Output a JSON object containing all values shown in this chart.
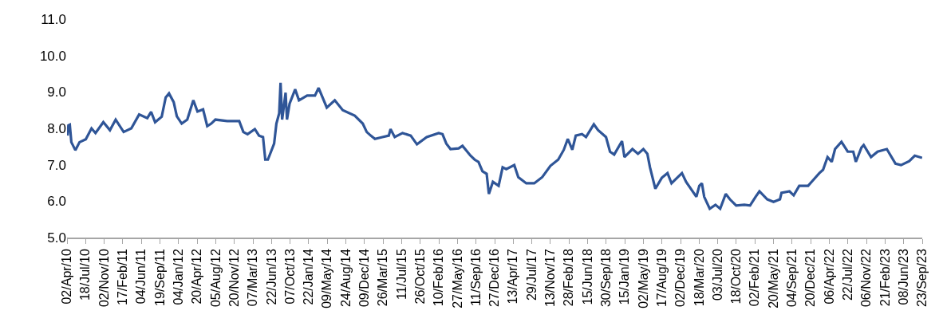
{
  "chart_data": {
    "type": "line",
    "x": [
      "2010-04-05",
      "2010-04-10",
      "2010-04-18",
      "2010-04-27",
      "2010-05-20",
      "2010-06-13",
      "2010-07-19",
      "2010-08-21",
      "2010-09-13",
      "2010-10-28",
      "2010-12-05",
      "2011-01-07",
      "2011-02-22",
      "2011-04-07",
      "2011-05-22",
      "2011-07-08",
      "2011-07-30",
      "2011-08-22",
      "2011-09-29",
      "2011-10-22",
      "2011-11-10",
      "2011-12-07",
      "2011-12-25",
      "2012-01-22",
      "2012-02-23",
      "2012-03-29",
      "2012-04-22",
      "2012-05-24",
      "2012-06-17",
      "2012-07-10",
      "2012-08-03",
      "2012-10-10",
      "2012-12-18",
      "2013-01-11",
      "2013-02-04",
      "2013-03-18",
      "2013-04-11",
      "2013-05-04",
      "2013-05-17",
      "2013-06-01",
      "2013-06-19",
      "2013-07-07",
      "2013-07-20",
      "2013-08-05",
      "2013-08-13",
      "2013-08-22",
      "2013-09-11",
      "2013-09-19",
      "2013-10-04",
      "2013-11-05",
      "2013-11-27",
      "2014-01-13",
      "2014-02-27",
      "2014-03-20",
      "2014-05-06",
      "2014-06-21",
      "2014-08-06",
      "2014-10-14",
      "2014-11-29",
      "2014-12-22",
      "2015-01-14",
      "2015-02-07",
      "2015-03-22",
      "2015-04-28",
      "2015-05-08",
      "2015-06-01",
      "2015-07-16",
      "2015-09-01",
      "2015-10-07",
      "2015-12-02",
      "2016-02-09",
      "2016-03-02",
      "2016-03-24",
      "2016-04-17",
      "2016-06-03",
      "2016-06-25",
      "2016-08-10",
      "2016-09-03",
      "2016-09-25",
      "2016-10-18",
      "2016-11-11",
      "2016-11-24",
      "2016-12-17",
      "2017-01-19",
      "2017-02-11",
      "2017-03-04",
      "2017-04-19",
      "2017-05-12",
      "2017-06-27",
      "2017-08-12",
      "2017-09-27",
      "2017-11-13",
      "2017-12-28",
      "2018-01-29",
      "2018-02-21",
      "2018-03-19",
      "2018-04-08",
      "2018-05-14",
      "2018-06-06",
      "2018-07-21",
      "2018-08-14",
      "2018-09-29",
      "2018-10-22",
      "2018-11-15",
      "2018-12-30",
      "2019-01-13",
      "2019-02-28",
      "2019-04-01",
      "2019-05-02",
      "2019-05-25",
      "2019-06-09",
      "2019-07-10",
      "2019-08-16",
      "2019-09-18",
      "2019-10-11",
      "2019-12-10",
      "2020-01-03",
      "2020-03-02",
      "2020-03-19",
      "2020-04-03",
      "2020-04-16",
      "2020-05-18",
      "2020-06-20",
      "2020-07-17",
      "2020-08-18",
      "2020-09-11",
      "2020-10-17",
      "2020-12-03",
      "2021-01-05",
      "2021-02-06",
      "2021-02-28",
      "2021-04-14",
      "2021-05-20",
      "2021-06-26",
      "2021-07-05",
      "2021-08-20",
      "2021-09-13",
      "2021-10-15",
      "2021-12-05",
      "2022-01-07",
      "2022-02-08",
      "2022-03-01",
      "2022-03-27",
      "2022-04-20",
      "2022-05-09",
      "2022-06-15",
      "2022-07-21",
      "2022-08-22",
      "2022-09-06",
      "2022-10-08",
      "2022-10-21",
      "2022-12-02",
      "2023-01-09",
      "2023-03-03",
      "2023-04-22",
      "2023-05-24",
      "2023-07-10",
      "2023-08-11",
      "2023-09-22"
    ],
    "series": [
      {
        "color": "#2f5597",
        "values": [
          7.8,
          8.08,
          8.1,
          7.62,
          7.4,
          7.62,
          7.7,
          8.0,
          7.87,
          8.17,
          7.95,
          8.24,
          7.9,
          8.0,
          8.38,
          8.28,
          8.45,
          8.17,
          8.32,
          8.85,
          8.96,
          8.72,
          8.33,
          8.13,
          8.24,
          8.77,
          8.46,
          8.52,
          8.06,
          8.13,
          8.24,
          8.2,
          8.2,
          7.9,
          7.84,
          7.98,
          7.8,
          7.76,
          7.14,
          7.14,
          7.36,
          7.58,
          8.13,
          8.41,
          9.25,
          8.24,
          8.98,
          8.24,
          8.68,
          9.07,
          8.77,
          8.9,
          8.9,
          9.11,
          8.57,
          8.77,
          8.5,
          8.35,
          8.13,
          7.9,
          7.8,
          7.71,
          7.76,
          7.8,
          7.98,
          7.76,
          7.87,
          7.8,
          7.56,
          7.76,
          7.87,
          7.84,
          7.58,
          7.43,
          7.45,
          7.52,
          7.25,
          7.14,
          7.08,
          6.82,
          6.75,
          6.2,
          6.53,
          6.42,
          6.93,
          6.88,
          6.99,
          6.66,
          6.49,
          6.49,
          6.66,
          6.97,
          7.14,
          7.41,
          7.71,
          7.41,
          7.8,
          7.84,
          7.76,
          8.11,
          7.95,
          7.76,
          7.36,
          7.28,
          7.65,
          7.21,
          7.43,
          7.3,
          7.43,
          7.3,
          6.93,
          6.34,
          6.64,
          6.77,
          6.49,
          6.77,
          6.53,
          6.12,
          6.42,
          6.49,
          6.12,
          5.79,
          5.9,
          5.79,
          6.2,
          6.05,
          5.88,
          5.9,
          5.88,
          6.12,
          6.27,
          6.05,
          5.98,
          6.05,
          6.23,
          6.27,
          6.16,
          6.42,
          6.42,
          6.6,
          6.77,
          6.86,
          7.21,
          7.08,
          7.43,
          7.63,
          7.36,
          7.36,
          7.08,
          7.47,
          7.54,
          7.21,
          7.36,
          7.43,
          7.03,
          6.99,
          7.1,
          7.25,
          7.19
        ]
      }
    ],
    "xlim": [
      "2010-04-02",
      "2023-09-23"
    ],
    "xticks": [
      {
        "value": "2010-04-02",
        "label": "02/Apr/10"
      },
      {
        "value": "2010-07-18",
        "label": "18/Jul/10"
      },
      {
        "value": "2010-11-02",
        "label": "02/Nov/10"
      },
      {
        "value": "2011-02-17",
        "label": "17/Feb/11"
      },
      {
        "value": "2011-06-04",
        "label": "04/Jun/11"
      },
      {
        "value": "2011-09-19",
        "label": "19/Sep/11"
      },
      {
        "value": "2012-01-04",
        "label": "04/Jan/12"
      },
      {
        "value": "2012-04-20",
        "label": "20/Apr/12"
      },
      {
        "value": "2012-08-05",
        "label": "05/Aug/12"
      },
      {
        "value": "2012-11-20",
        "label": "20/Nov/12"
      },
      {
        "value": "2013-03-07",
        "label": "07/Mar/13"
      },
      {
        "value": "2013-06-22",
        "label": "22/Jun/13"
      },
      {
        "value": "2013-10-07",
        "label": "07/Oct/13"
      },
      {
        "value": "2014-01-22",
        "label": "22/Jan/14"
      },
      {
        "value": "2014-05-09",
        "label": "09/May/14"
      },
      {
        "value": "2014-08-24",
        "label": "24/Aug/14"
      },
      {
        "value": "2014-12-09",
        "label": "09/Dec/14"
      },
      {
        "value": "2015-03-26",
        "label": "26/Mar/15"
      },
      {
        "value": "2015-07-11",
        "label": "11/Jul/15"
      },
      {
        "value": "2015-10-26",
        "label": "26/Oct/15"
      },
      {
        "value": "2016-02-10",
        "label": "10/Feb/16"
      },
      {
        "value": "2016-05-27",
        "label": "27/May/16"
      },
      {
        "value": "2016-09-11",
        "label": "11/Sep/16"
      },
      {
        "value": "2016-12-27",
        "label": "27/Dec/16"
      },
      {
        "value": "2017-04-13",
        "label": "13/Apr/17"
      },
      {
        "value": "2017-07-29",
        "label": "29/Jul/17"
      },
      {
        "value": "2017-11-13",
        "label": "13/Nov/17"
      },
      {
        "value": "2018-02-28",
        "label": "28/Feb/18"
      },
      {
        "value": "2018-06-15",
        "label": "15/Jun/18"
      },
      {
        "value": "2018-09-30",
        "label": "30/Sep/18"
      },
      {
        "value": "2019-01-15",
        "label": "15/Jan/19"
      },
      {
        "value": "2019-05-02",
        "label": "02/May/19"
      },
      {
        "value": "2019-08-17",
        "label": "17/Aug/19"
      },
      {
        "value": "2019-12-02",
        "label": "02/Dec/19"
      },
      {
        "value": "2020-03-18",
        "label": "18/Mar/20"
      },
      {
        "value": "2020-07-03",
        "label": "03/Jul/20"
      },
      {
        "value": "2020-10-18",
        "label": "18/Oct/20"
      },
      {
        "value": "2021-02-02",
        "label": "02/Feb/21"
      },
      {
        "value": "2021-05-20",
        "label": "20/May/21"
      },
      {
        "value": "2021-09-04",
        "label": "04/Sep/21"
      },
      {
        "value": "2021-12-20",
        "label": "20/Dec/21"
      },
      {
        "value": "2022-04-06",
        "label": "06/Apr/22"
      },
      {
        "value": "2022-07-22",
        "label": "22/Jul/22"
      },
      {
        "value": "2022-11-06",
        "label": "06/Nov/22"
      },
      {
        "value": "2023-02-21",
        "label": "21/Feb/23"
      },
      {
        "value": "2023-06-08",
        "label": "08/Jun/23"
      },
      {
        "value": "2023-09-23",
        "label": "23/Sep/23"
      }
    ],
    "ylim": [
      5,
      11
    ],
    "yticks": [
      {
        "value": 5,
        "label": "5.0"
      },
      {
        "value": 6,
        "label": "6.0"
      },
      {
        "value": 7,
        "label": "7.0"
      },
      {
        "value": 8,
        "label": "8.0"
      },
      {
        "value": 9,
        "label": "9.0"
      },
      {
        "value": 10,
        "label": "10.0"
      },
      {
        "value": 11,
        "label": "11.0"
      }
    ]
  }
}
